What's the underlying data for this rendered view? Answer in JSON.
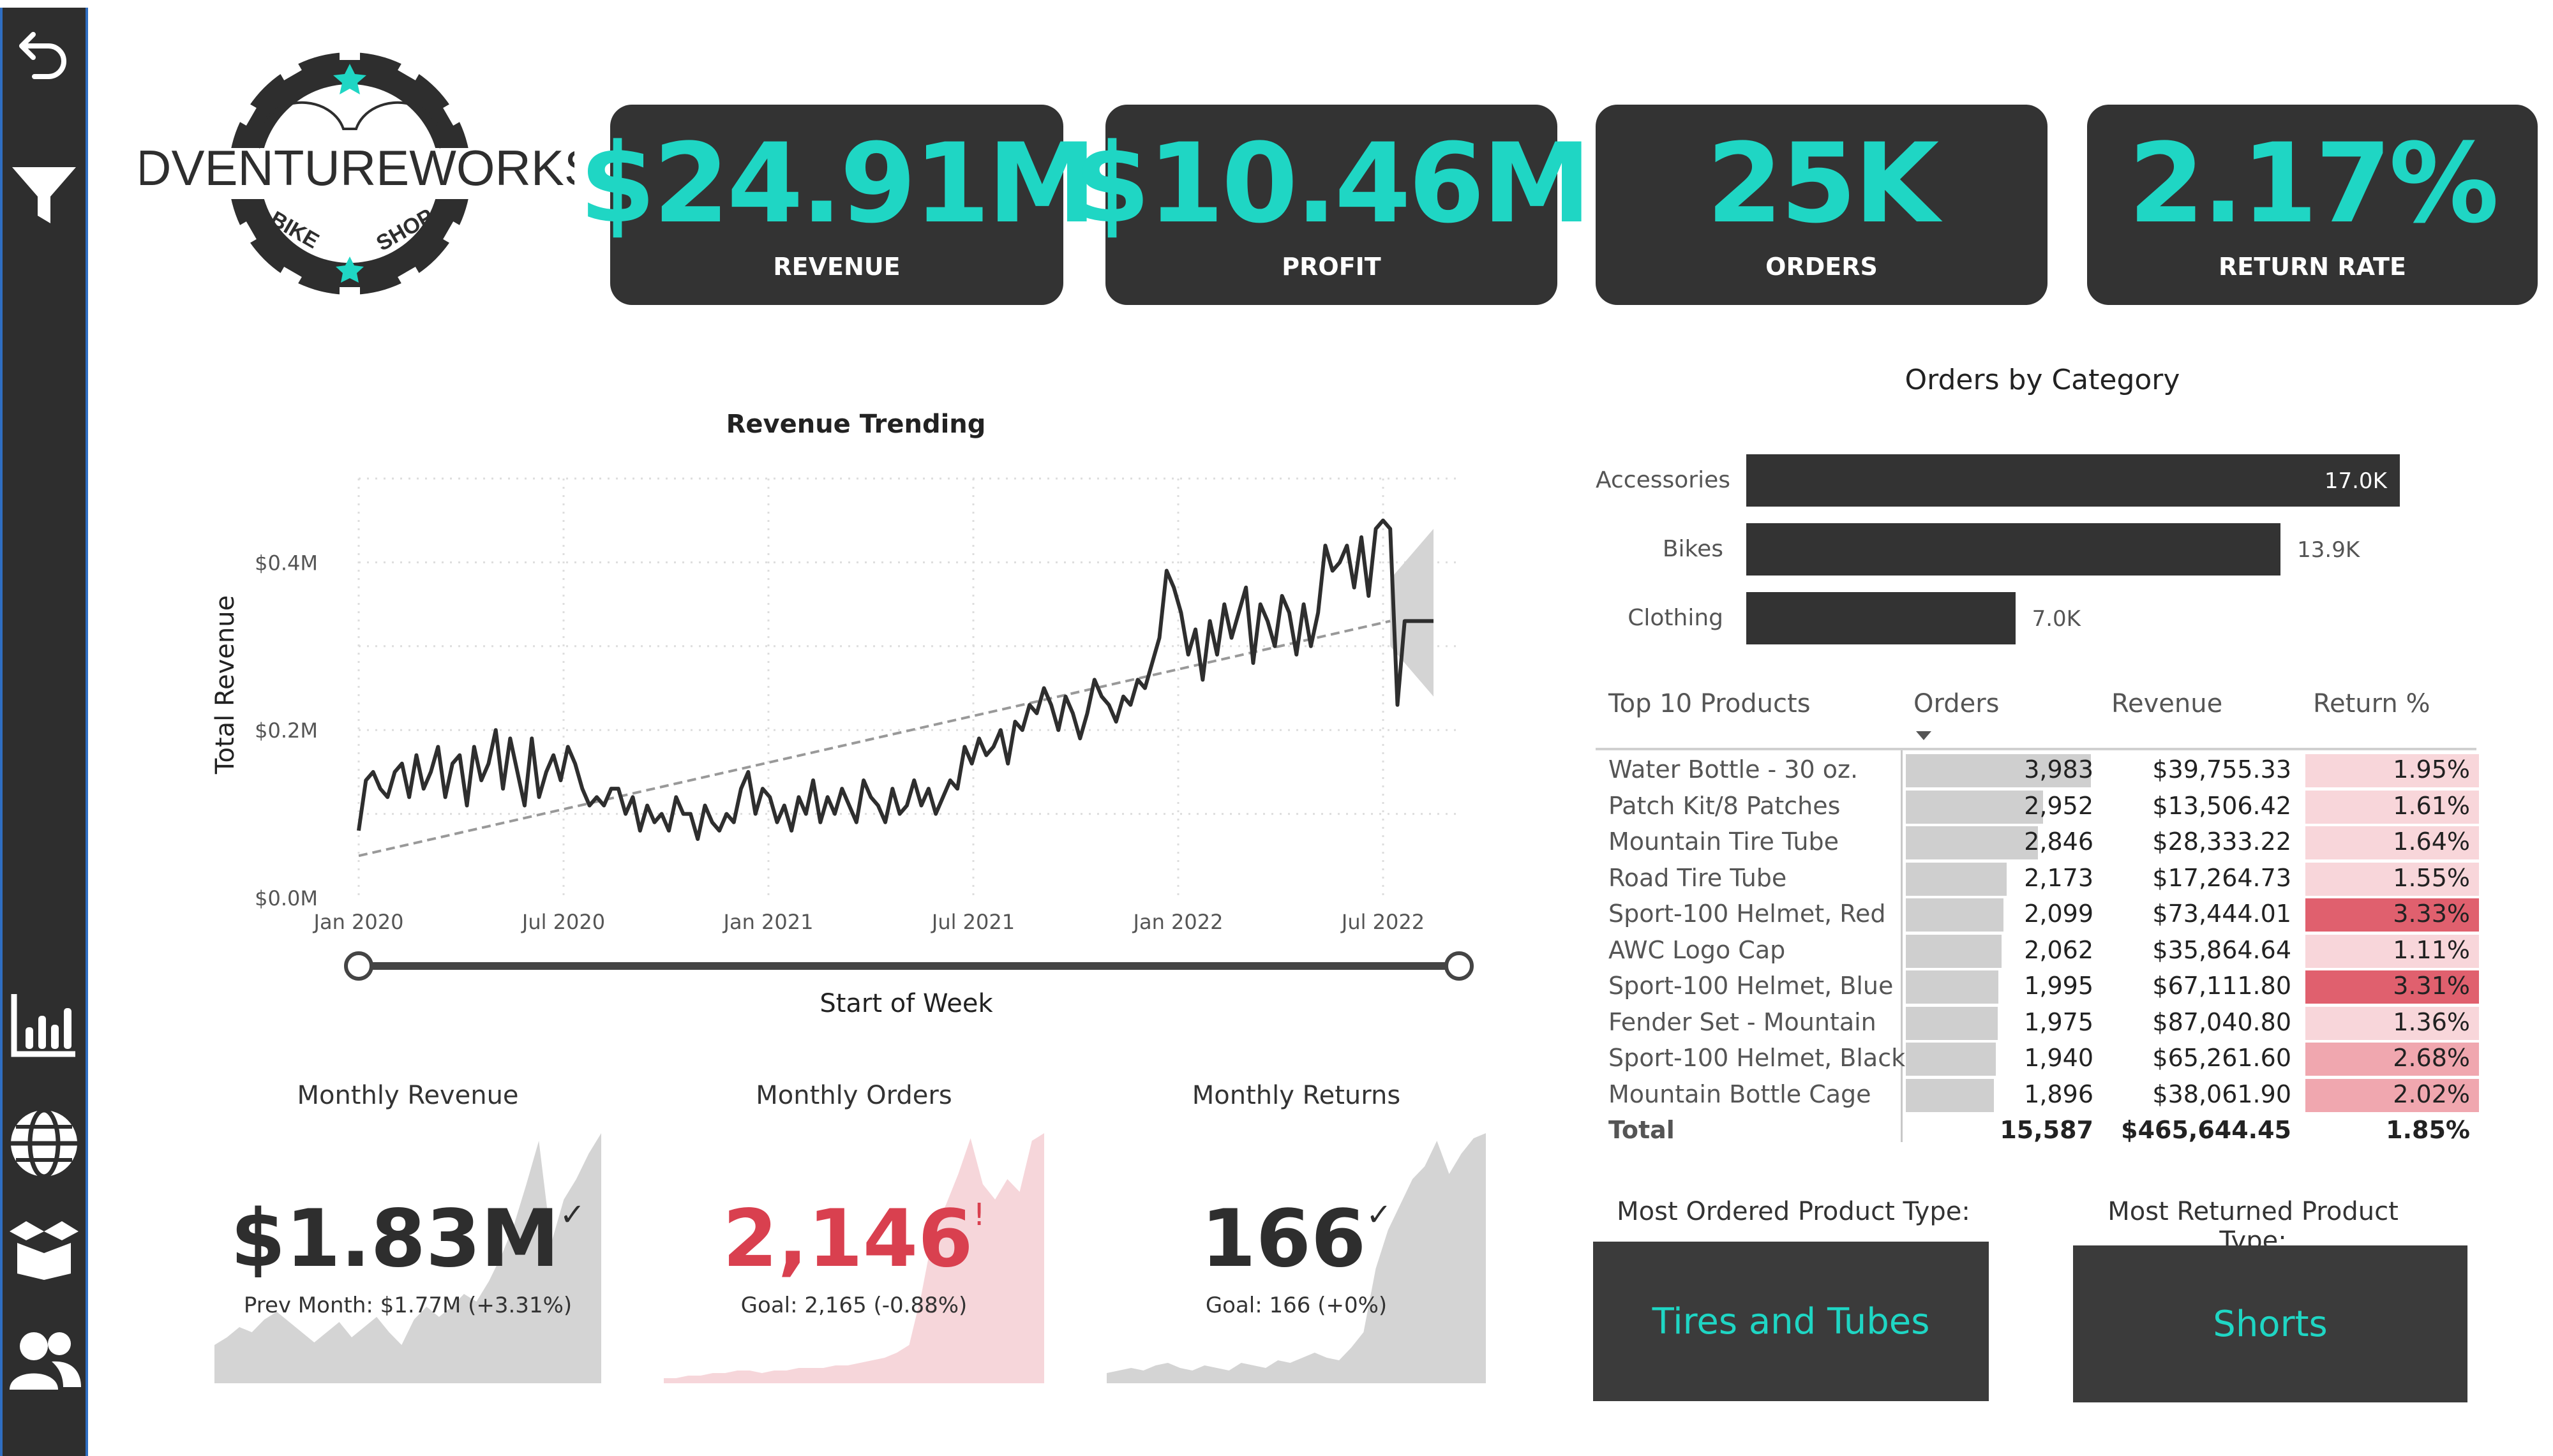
{
  "colors": {
    "accent": "#1fd6c4",
    "card": "#333333",
    "red": "#d9404f",
    "return_high": "#e0606e",
    "return_mid": "#f0a7af",
    "return_low": "#f8d6da",
    "orders_bar": "#cfcfcf"
  },
  "sidebar": {
    "icons": [
      "back-arrow-icon",
      "filter-icon",
      "bar-chart-icon",
      "globe-icon",
      "box-icon",
      "users-icon"
    ]
  },
  "logo": {
    "brand": "ADVENTUREWORKS",
    "sub_left": "BIKE",
    "sub_right": "SHOP"
  },
  "kpis": [
    {
      "value": "$24.91M",
      "label": "REVENUE"
    },
    {
      "value": "$10.46M",
      "label": "PROFIT"
    },
    {
      "value": "25K",
      "label": "ORDERS"
    },
    {
      "value": "2.17%",
      "label": "RETURN RATE"
    }
  ],
  "revenue_trend": {
    "title": "Revenue Trending",
    "ylabel": "Total Revenue",
    "xlabel": "Start of Week",
    "yticks": [
      "$0.4M",
      "$0.2M",
      "$0.0M"
    ],
    "xticks": [
      "Jan 2020",
      "Jul 2020",
      "Jan 2021",
      "Jul 2021",
      "Jan 2022",
      "Jul 2022"
    ]
  },
  "chart_data": [
    {
      "type": "line",
      "title": "Revenue Trending",
      "xlabel": "Start of Week",
      "ylabel": "Total Revenue",
      "ylim": [
        0,
        0.5
      ],
      "unit": "$M",
      "x_range": [
        "Jan 2020",
        "Aug 2022"
      ],
      "values": [
        0.08,
        0.14,
        0.15,
        0.13,
        0.12,
        0.15,
        0.16,
        0.12,
        0.17,
        0.13,
        0.15,
        0.18,
        0.12,
        0.16,
        0.17,
        0.11,
        0.18,
        0.14,
        0.16,
        0.2,
        0.13,
        0.19,
        0.15,
        0.11,
        0.19,
        0.12,
        0.15,
        0.17,
        0.14,
        0.18,
        0.16,
        0.13,
        0.11,
        0.12,
        0.11,
        0.13,
        0.13,
        0.1,
        0.12,
        0.08,
        0.11,
        0.09,
        0.1,
        0.08,
        0.12,
        0.1,
        0.1,
        0.07,
        0.11,
        0.09,
        0.08,
        0.1,
        0.09,
        0.13,
        0.15,
        0.1,
        0.13,
        0.12,
        0.09,
        0.11,
        0.08,
        0.12,
        0.1,
        0.14,
        0.09,
        0.12,
        0.1,
        0.13,
        0.11,
        0.09,
        0.14,
        0.12,
        0.11,
        0.09,
        0.13,
        0.1,
        0.11,
        0.14,
        0.11,
        0.13,
        0.1,
        0.12,
        0.14,
        0.13,
        0.18,
        0.16,
        0.19,
        0.17,
        0.18,
        0.2,
        0.16,
        0.21,
        0.2,
        0.23,
        0.22,
        0.25,
        0.23,
        0.2,
        0.24,
        0.22,
        0.19,
        0.22,
        0.26,
        0.24,
        0.23,
        0.21,
        0.24,
        0.23,
        0.26,
        0.25,
        0.28,
        0.31,
        0.39,
        0.37,
        0.34,
        0.29,
        0.32,
        0.26,
        0.33,
        0.29,
        0.35,
        0.31,
        0.34,
        0.37,
        0.28,
        0.35,
        0.33,
        0.3,
        0.36,
        0.34,
        0.29,
        0.35,
        0.3,
        0.34,
        0.42,
        0.39,
        0.4,
        0.42,
        0.37,
        0.43,
        0.36,
        0.44,
        0.45,
        0.44,
        0.23,
        0.33,
        0.33,
        0.33,
        0.33,
        0.33
      ],
      "trend_line": {
        "start": 0.05,
        "end": 0.33
      },
      "forecast_band": {
        "upper": [
          0.38,
          0.44
        ],
        "lower": [
          0.3,
          0.24
        ]
      }
    },
    {
      "type": "bar",
      "title": "Orders by Category",
      "categories": [
        "Accessories",
        "Bikes",
        "Clothing"
      ],
      "values": [
        17.0,
        13.9,
        7.0
      ],
      "data_labels": [
        "17.0K",
        "13.9K",
        "7.0K"
      ],
      "unit": "K orders"
    },
    {
      "type": "table",
      "title": "Top 10 Products",
      "columns": [
        "Top 10 Products",
        "Orders",
        "Revenue",
        "Return %"
      ],
      "rows": [
        {
          "name": "Water Bottle - 30 oz.",
          "orders": "3,983",
          "orders_value": 3983,
          "revenue": "$39,755.33",
          "ret": "1.95%",
          "ret_value": 1.95
        },
        {
          "name": "Patch Kit/8 Patches",
          "orders": "2,952",
          "orders_value": 2952,
          "revenue": "$13,506.42",
          "ret": "1.61%",
          "ret_value": 1.61
        },
        {
          "name": "Mountain Tire Tube",
          "orders": "2,846",
          "orders_value": 2846,
          "revenue": "$28,333.22",
          "ret": "1.64%",
          "ret_value": 1.64
        },
        {
          "name": "Road Tire Tube",
          "orders": "2,173",
          "orders_value": 2173,
          "revenue": "$17,264.73",
          "ret": "1.55%",
          "ret_value": 1.55
        },
        {
          "name": "Sport-100 Helmet, Red",
          "orders": "2,099",
          "orders_value": 2099,
          "revenue": "$73,444.01",
          "ret": "3.33%",
          "ret_value": 3.33
        },
        {
          "name": "AWC Logo Cap",
          "orders": "2,062",
          "orders_value": 2062,
          "revenue": "$35,864.64",
          "ret": "1.11%",
          "ret_value": 1.11
        },
        {
          "name": "Sport-100 Helmet, Blue",
          "orders": "1,995",
          "orders_value": 1995,
          "revenue": "$67,111.80",
          "ret": "3.31%",
          "ret_value": 3.31
        },
        {
          "name": "Fender Set - Mountain",
          "orders": "1,975",
          "orders_value": 1975,
          "revenue": "$87,040.80",
          "ret": "1.36%",
          "ret_value": 1.36
        },
        {
          "name": "Sport-100 Helmet, Black",
          "orders": "1,940",
          "orders_value": 1940,
          "revenue": "$65,261.60",
          "ret": "2.68%",
          "ret_value": 2.68
        },
        {
          "name": "Mountain Bottle Cage",
          "orders": "1,896",
          "orders_value": 1896,
          "revenue": "$38,061.90",
          "ret": "2.02%",
          "ret_value": 2.02
        }
      ],
      "total": {
        "name": "Total",
        "orders": "15,587",
        "revenue": "$465,644.45",
        "ret": "1.85%"
      }
    },
    {
      "type": "area",
      "title": "Monthly Revenue",
      "values": [
        0.15,
        0.18,
        0.22,
        0.2,
        0.25,
        0.28,
        0.24,
        0.2,
        0.16,
        0.2,
        0.24,
        0.18,
        0.22,
        0.26,
        0.2,
        0.15,
        0.25,
        0.3,
        0.26,
        0.3,
        0.35,
        0.32,
        0.4,
        0.5,
        0.62,
        0.78,
        0.95,
        0.55,
        0.72,
        0.8,
        0.9,
        0.98
      ]
    },
    {
      "type": "area",
      "title": "Monthly Orders",
      "values": [
        0.02,
        0.02,
        0.03,
        0.03,
        0.04,
        0.04,
        0.05,
        0.05,
        0.04,
        0.05,
        0.05,
        0.06,
        0.06,
        0.06,
        0.07,
        0.07,
        0.08,
        0.09,
        0.1,
        0.12,
        0.15,
        0.35,
        0.6,
        0.7,
        0.82,
        0.96,
        0.78,
        0.72,
        0.8,
        0.75,
        0.95,
        0.98
      ]
    },
    {
      "type": "area",
      "title": "Monthly Returns",
      "values": [
        0.04,
        0.05,
        0.06,
        0.05,
        0.07,
        0.08,
        0.06,
        0.05,
        0.07,
        0.06,
        0.05,
        0.08,
        0.07,
        0.06,
        0.09,
        0.08,
        0.1,
        0.12,
        0.1,
        0.09,
        0.14,
        0.2,
        0.45,
        0.6,
        0.7,
        0.8,
        0.85,
        0.95,
        0.82,
        0.9,
        0.96,
        0.98
      ]
    }
  ],
  "orders_by_category": {
    "title": "Orders by Category"
  },
  "monthly": [
    {
      "title": "Monthly Revenue",
      "value": "$1.83M",
      "mark": "✓",
      "sub": "Prev Month: $1.77M (+3.31%)"
    },
    {
      "title": "Monthly Orders",
      "value": "2,146",
      "mark": "!",
      "sub": "Goal: 2,165 (-0.88%)"
    },
    {
      "title": "Monthly Returns",
      "value": "166",
      "mark": "✓",
      "sub": "Goal: 166 (+0%)"
    }
  ],
  "product_types": {
    "ordered_label": "Most Ordered Product Type:",
    "ordered_value": "Tires and Tubes",
    "returned_label": "Most Returned Product Type:",
    "returned_value": "Shorts"
  }
}
